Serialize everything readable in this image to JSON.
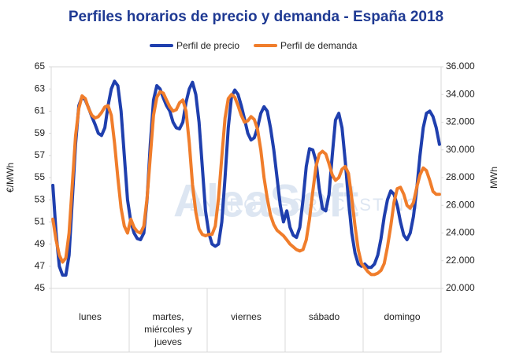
{
  "chart_data": {
    "type": "line",
    "title": "Perfiles horarios de precio y demanda - España 2018",
    "ylabel": "€/MWh",
    "y2label": "MWh",
    "watermark": "AleaSoft",
    "watermark_sub": "ENERGY FORECASTING",
    "categories": [
      "lunes",
      "martes, miércoles y jueves",
      "viernes",
      "sábado",
      "domingo"
    ],
    "legend": "top",
    "ylim": [
      45,
      65
    ],
    "yticks": [
      45,
      47,
      49,
      51,
      53,
      55,
      57,
      59,
      61,
      63,
      65
    ],
    "y2lim": [
      20000,
      36000
    ],
    "y2ticks": [
      {
        "value": 20000,
        "label": "20.000"
      },
      {
        "value": 22000,
        "label": "22.000"
      },
      {
        "value": 24000,
        "label": "24.000"
      },
      {
        "value": 26000,
        "label": "26.000"
      },
      {
        "value": 28000,
        "label": "28.000"
      },
      {
        "value": 30000,
        "label": "30.000"
      },
      {
        "value": 32000,
        "label": "32.000"
      },
      {
        "value": 34000,
        "label": "34.000"
      },
      {
        "value": 36000,
        "label": "36.000"
      }
    ],
    "series": [
      {
        "name": "Perfil de precio",
        "color": "#1f3fae",
        "values": [
          [
            54.3,
            50,
            47,
            46.2,
            46.2,
            48,
            53,
            58,
            61.5,
            62.3,
            62,
            61.3,
            60.5,
            59.8,
            59,
            58.8,
            59.5,
            61.5,
            63,
            63.7,
            63.3,
            61,
            57,
            53
          ],
          [
            51,
            50,
            49.5,
            49.4,
            50,
            53,
            58,
            62,
            63.3,
            63,
            62.2,
            61.5,
            61,
            60,
            59.5,
            59.4,
            60,
            61.8,
            63,
            63.6,
            62.5,
            60,
            56,
            52
          ],
          [
            50,
            49,
            48.8,
            49,
            51,
            55,
            59.5,
            62.3,
            62.9,
            62.5,
            61.5,
            60.3,
            59,
            58.4,
            58.6,
            59.5,
            60.8,
            61.4,
            61,
            59.5,
            57.5,
            55,
            52.5,
            51
          ],
          [
            52,
            50.5,
            49.8,
            49.6,
            50.5,
            53,
            56,
            57.6,
            57.5,
            56.5,
            54,
            52.2,
            52,
            53.5,
            57,
            60.2,
            60.8,
            59.5,
            56.5,
            53,
            50,
            48.2,
            47.2,
            47
          ],
          [
            47.2,
            46.9,
            46.9,
            47.2,
            48,
            49.5,
            51.5,
            53,
            53.8,
            53.5,
            52.5,
            51,
            49.8,
            49.4,
            50,
            51.5,
            54,
            57,
            59.5,
            60.8,
            61,
            60.5,
            59.5,
            58
          ]
        ]
      },
      {
        "name": "Perfil de demanda",
        "color": "#f07d2b",
        "axis": "y2",
        "values": [
          [
            25000,
            23500,
            22400,
            21900,
            22200,
            24000,
            27500,
            31000,
            33000,
            33900,
            33700,
            33000,
            32500,
            32300,
            32400,
            32700,
            33100,
            33200,
            32500,
            30500,
            28000,
            25800,
            24500,
            24000
          ],
          [
            25000,
            24400,
            24100,
            24000,
            24500,
            26500,
            29500,
            32500,
            33800,
            34200,
            34100,
            33600,
            33100,
            32800,
            32900,
            33400,
            33600,
            32800,
            30500,
            27500,
            25500,
            24300,
            23900,
            23800
          ],
          [
            23900,
            23900,
            24500,
            26500,
            29500,
            32300,
            33700,
            34000,
            33800,
            33200,
            32500,
            32000,
            32100,
            32400,
            32200,
            31500,
            30000,
            28000,
            26500,
            25300,
            24600,
            24200,
            24000,
            23800
          ],
          [
            23500,
            23200,
            23000,
            22800,
            22700,
            22800,
            23500,
            25000,
            27000,
            28800,
            29700,
            29900,
            29700,
            29000,
            28200,
            27800,
            28000,
            28600,
            28800,
            28300,
            26500,
            24500,
            22800,
            21800
          ],
          [
            21500,
            21200,
            21000,
            21000,
            21100,
            21300,
            21800,
            23000,
            24500,
            26200,
            27200,
            27300,
            26800,
            26000,
            25800,
            26200,
            27300,
            28200,
            28700,
            28500,
            27800,
            27000,
            26800,
            26800
          ]
        ]
      }
    ]
  }
}
